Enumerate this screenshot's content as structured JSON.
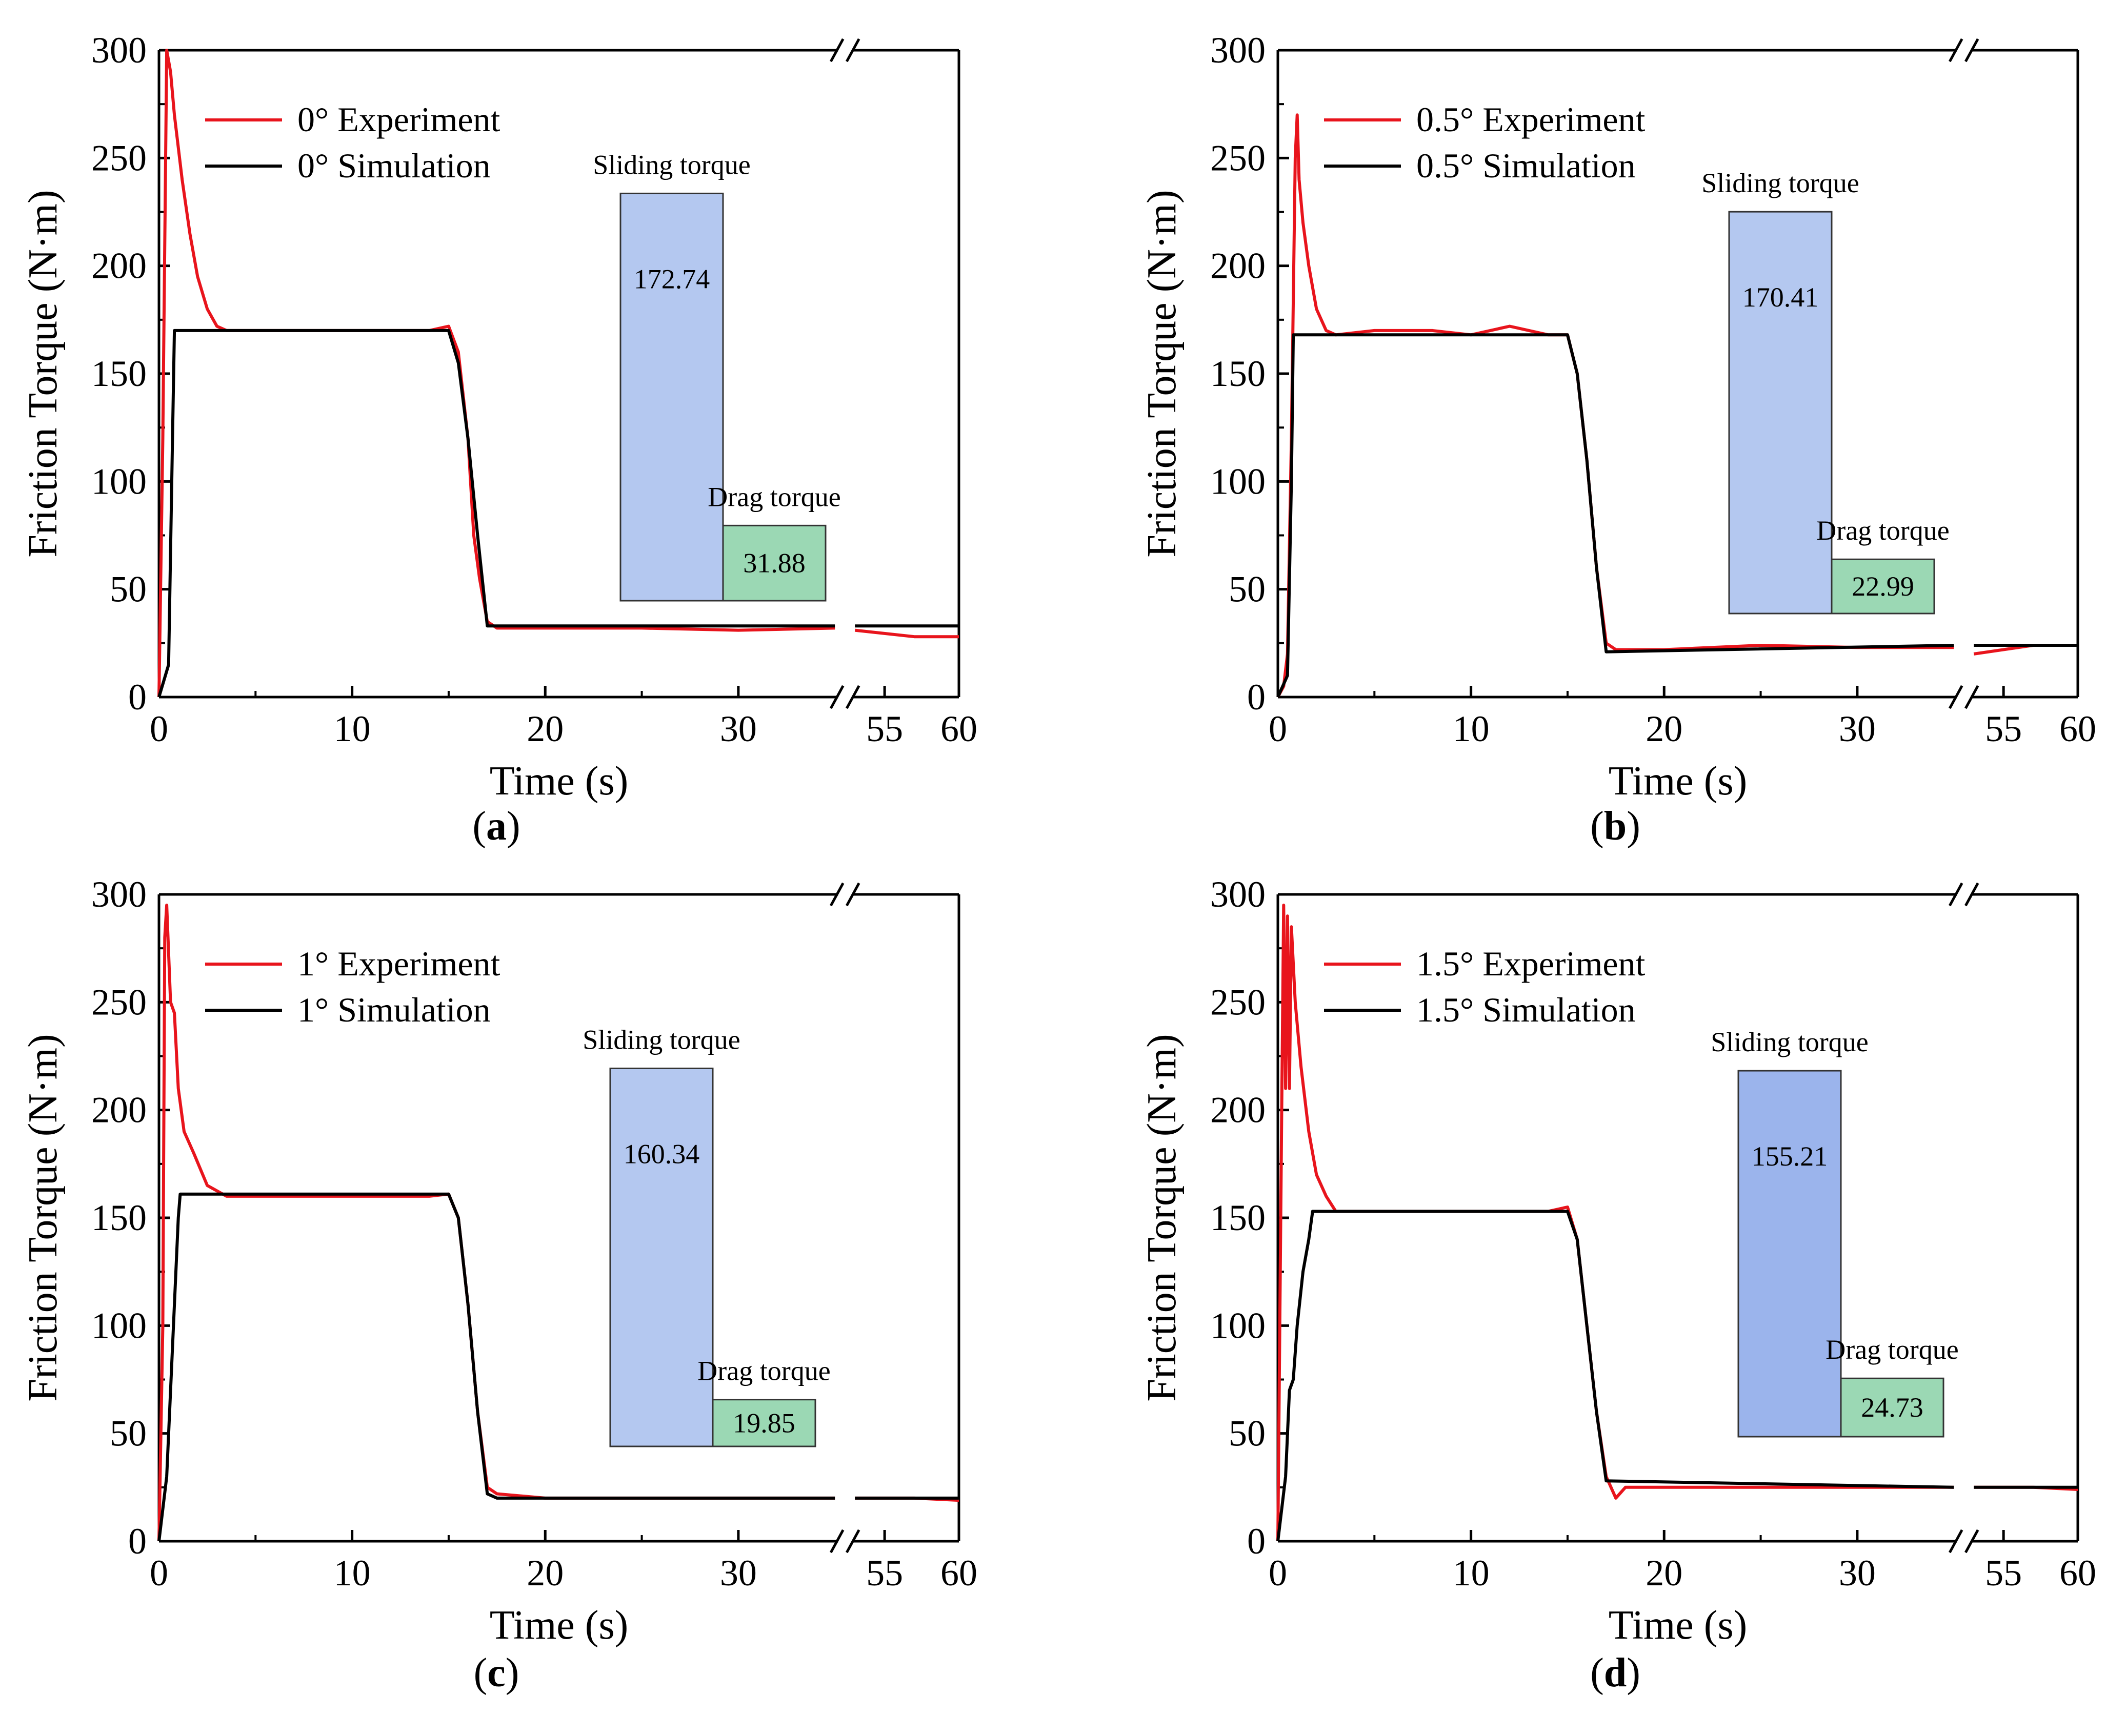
{
  "figure": {
    "panels": [
      {
        "panel_label": "a",
        "legend": [
          "0° Experiment",
          "0° Simulation"
        ],
        "bars": [
          {
            "label": "Sliding torque",
            "value": 172.74,
            "display": "172.74",
            "color": "#b4c8f0"
          },
          {
            "label": "Drag torque",
            "value": 31.88,
            "display": "31.88",
            "color": "#9bd8b4"
          }
        ]
      },
      {
        "panel_label": "b",
        "legend": [
          "0.5° Experiment",
          "0.5° Simulation"
        ],
        "bars": [
          {
            "label": "Sliding torque",
            "value": 170.41,
            "display": "170.41",
            "color": "#b4c8f0"
          },
          {
            "label": "Drag torque",
            "value": 22.99,
            "display": "22.99",
            "color": "#9bd8b4"
          }
        ]
      },
      {
        "panel_label": "c",
        "legend": [
          "1° Experiment",
          "1° Simulation"
        ],
        "bars": [
          {
            "label": "Sliding torque",
            "value": 160.34,
            "display": "160.34",
            "color": "#b4c8f0"
          },
          {
            "label": "Drag torque",
            "value": 19.85,
            "display": "19.85",
            "color": "#9bd8b4"
          }
        ]
      },
      {
        "panel_label": "d",
        "legend": [
          "1.5°  Experiment",
          "1.5°  Simulation"
        ],
        "bars": [
          {
            "label": "Sliding torque",
            "value": 155.21,
            "display": "155.21",
            "color": "#9bb4ec"
          },
          {
            "label": "Drag torque",
            "value": 24.73,
            "display": "24.73",
            "color": "#9bd8b4"
          }
        ]
      }
    ]
  },
  "chart_data": [
    {
      "type": "line",
      "xlabel": "Time (s)",
      "ylabel": "Friction Torque (N·m)",
      "ylim": [
        0,
        300
      ],
      "yticks": [
        "0",
        "50",
        "100",
        "150",
        "200",
        "250",
        "300"
      ],
      "xticks": [
        "0",
        "10",
        "20",
        "30",
        "55",
        "60"
      ],
      "x_break": [
        35,
        53
      ],
      "series_colors": {
        "experiment": "#e8141c",
        "simulation": "#000000"
      },
      "series": [
        {
          "name": "0° Experiment",
          "x": [
            0,
            0.2,
            0.4,
            0.6,
            0.8,
            1.2,
            1.6,
            2.0,
            2.5,
            3.0,
            3.5,
            4,
            6,
            8,
            10,
            12,
            14,
            15,
            15.5,
            16.0,
            16.3,
            16.6,
            17.0,
            17.5,
            20,
            25,
            30,
            35,
            53,
            57,
            60
          ],
          "y": [
            0,
            120,
            300,
            290,
            270,
            240,
            215,
            195,
            180,
            172,
            170,
            170,
            170,
            170,
            170,
            170,
            170,
            172,
            160,
            120,
            75,
            55,
            35,
            32,
            32,
            32,
            31,
            32,
            31,
            28,
            28
          ]
        },
        {
          "name": "0° Simulation",
          "x": [
            0,
            0.5,
            0.7,
            0.8,
            15,
            15.5,
            16,
            16.5,
            17,
            35,
            53,
            60
          ],
          "y": [
            0,
            15,
            120,
            170,
            170,
            155,
            120,
            75,
            33,
            33,
            33,
            33
          ]
        },
        {
          "name": "0.5° Experiment",
          "x": [
            0,
            0.3,
            0.5,
            0.7,
            0.9,
            1.0,
            1.1,
            1.3,
            1.6,
            2.0,
            2.5,
            3,
            5,
            8,
            10,
            12,
            14,
            15,
            15.5,
            16,
            16.5,
            17,
            17.5,
            20,
            25,
            30,
            35,
            53,
            57,
            60
          ],
          "y": [
            0,
            5,
            20,
            120,
            250,
            270,
            240,
            220,
            200,
            180,
            170,
            168,
            170,
            170,
            168,
            172,
            168,
            168,
            150,
            110,
            60,
            25,
            22,
            22,
            24,
            23,
            23,
            20,
            24,
            24
          ]
        },
        {
          "name": "0.5° Simulation",
          "x": [
            0,
            0.5,
            0.7,
            0.8,
            15,
            15.5,
            16,
            16.5,
            17,
            35,
            53,
            60
          ],
          "y": [
            0,
            10,
            100,
            168,
            168,
            150,
            110,
            60,
            21,
            24,
            24,
            24
          ]
        },
        {
          "name": "1° Experiment",
          "x": [
            0,
            0.2,
            0.3,
            0.4,
            0.6,
            0.8,
            1.0,
            1.3,
            1.8,
            2.5,
            3.5,
            5,
            8,
            10,
            12,
            14,
            15,
            15.5,
            16,
            16.5,
            17,
            17.5,
            20,
            25,
            30,
            35,
            53,
            57,
            60
          ],
          "y": [
            0,
            100,
            280,
            295,
            250,
            245,
            210,
            190,
            180,
            165,
            160,
            160,
            160,
            160,
            160,
            160,
            161,
            150,
            110,
            60,
            25,
            22,
            20,
            20,
            20,
            20,
            20,
            20,
            19
          ]
        },
        {
          "name": "1° Simulation",
          "x": [
            0,
            0.4,
            0.7,
            1.0,
            1.1,
            15,
            15.5,
            16,
            16.5,
            17,
            17.5,
            35,
            53,
            60
          ],
          "y": [
            0,
            30,
            90,
            150,
            161,
            161,
            150,
            110,
            60,
            22,
            20,
            20,
            20,
            20
          ]
        },
        {
          "name": "1.5°  Experiment",
          "x": [
            0,
            0.2,
            0.3,
            0.4,
            0.5,
            0.6,
            0.7,
            0.9,
            1.2,
            1.6,
            2.0,
            2.5,
            3.0,
            5,
            8,
            10,
            12,
            14,
            15,
            15.5,
            16,
            16.5,
            17,
            17.5,
            18,
            20,
            25,
            30,
            35,
            53,
            57,
            60
          ],
          "y": [
            0,
            200,
            295,
            210,
            290,
            210,
            285,
            250,
            220,
            190,
            170,
            160,
            153,
            153,
            153,
            153,
            153,
            153,
            155,
            140,
            100,
            60,
            30,
            20,
            25,
            25,
            25,
            25,
            25,
            25,
            25,
            24
          ]
        },
        {
          "name": "1.5°  Simulation",
          "x": [
            0,
            0.4,
            0.6,
            0.8,
            1.0,
            1.3,
            1.6,
            1.8,
            15,
            15.5,
            16,
            16.5,
            17,
            35,
            53,
            60
          ],
          "y": [
            0,
            30,
            70,
            75,
            100,
            125,
            140,
            153,
            153,
            140,
            100,
            60,
            28,
            25,
            25,
            25
          ]
        }
      ]
    },
    {
      "type": "bar",
      "categories": [
        "Sliding torque",
        "Drag torque"
      ],
      "series": [
        {
          "name": "0°",
          "values": [
            172.74,
            31.88
          ]
        },
        {
          "name": "0.5°",
          "values": [
            170.41,
            22.99
          ]
        },
        {
          "name": "1°",
          "values": [
            160.34,
            19.85
          ]
        },
        {
          "name": "1.5°",
          "values": [
            155.21,
            24.73
          ]
        }
      ]
    }
  ]
}
